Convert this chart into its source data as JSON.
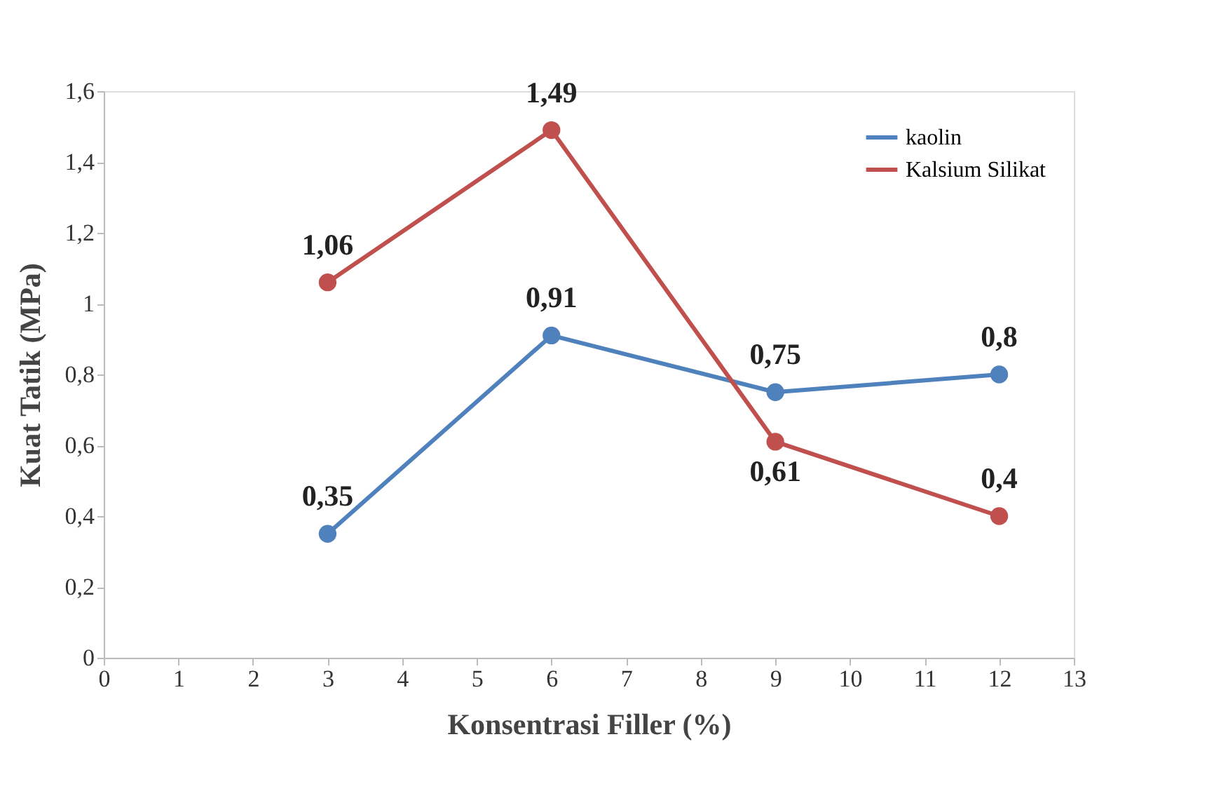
{
  "chart_data": {
    "type": "line",
    "xlabel": "Konsentrasi Filler (%)",
    "ylabel": "Kuat Tatik (MPa)",
    "xlim": [
      0,
      13
    ],
    "xticks": [
      0,
      1,
      2,
      3,
      4,
      5,
      6,
      7,
      8,
      9,
      10,
      11,
      12,
      13
    ],
    "ylim": [
      0,
      1.6
    ],
    "yticks": [
      0,
      {
        "value": 0.2,
        "label": "0,2"
      },
      {
        "value": 0.4,
        "label": "0,4"
      },
      {
        "value": 0.6,
        "label": "0,6"
      },
      {
        "value": 0.8,
        "label": "0,8"
      },
      1,
      {
        "value": 1.2,
        "label": "1,2"
      },
      {
        "value": 1.4,
        "label": "1,4"
      },
      {
        "value": 1.6,
        "label": "1,6"
      }
    ],
    "x": [
      3,
      6,
      9,
      12
    ],
    "series": [
      {
        "name": "kaolin",
        "color": "#4f81bd",
        "values": [
          0.35,
          0.91,
          0.75,
          0.8
        ],
        "value_labels": [
          "0,35",
          "0,91",
          "0,75",
          "0,8"
        ]
      },
      {
        "name": "Kalsium Silikat",
        "color": "#c0504d",
        "values": [
          1.06,
          1.49,
          0.61,
          0.4
        ],
        "value_labels": [
          "1,06",
          "1,49",
          "0,61",
          "0,4"
        ]
      }
    ],
    "marker": "circle",
    "line_style": "solid",
    "grid": false,
    "legend": "top right"
  }
}
